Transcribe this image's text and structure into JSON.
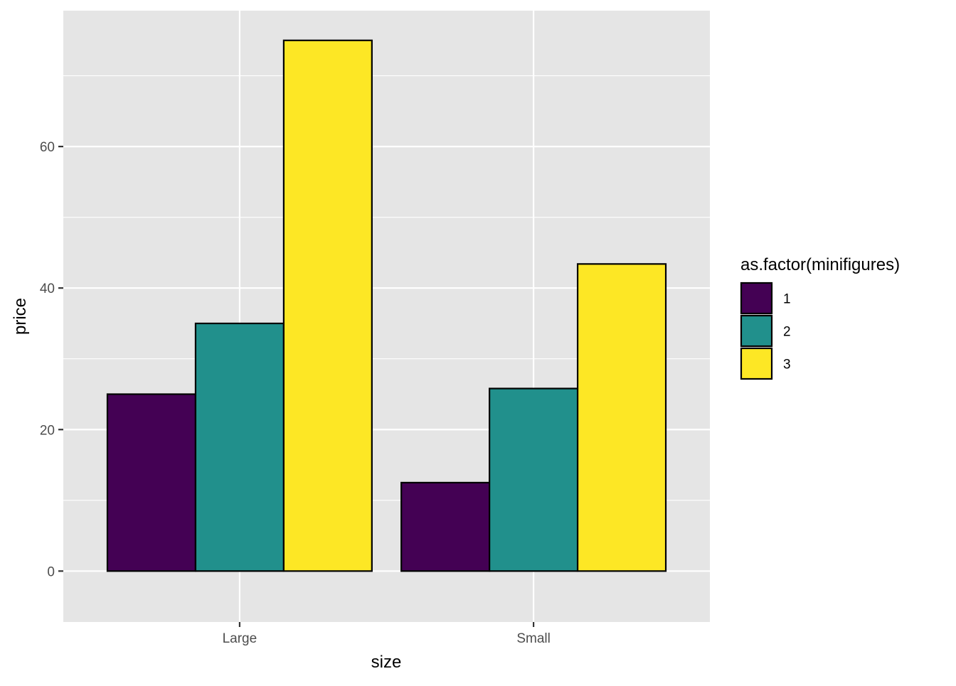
{
  "chart_data": {
    "type": "bar",
    "xlabel": "size",
    "ylabel": "price",
    "categories": [
      "Large",
      "Small"
    ],
    "ylim": [
      -7.2,
      79.2
    ],
    "yticks": [
      0,
      20,
      40,
      60
    ],
    "grid": true,
    "legend": {
      "title": "as.factor(minifigures)",
      "position": "right"
    },
    "series": [
      {
        "name": "1",
        "color": "#440154",
        "values": [
          25,
          12.5
        ]
      },
      {
        "name": "2",
        "color": "#21908C",
        "values": [
          35,
          25.8
        ]
      },
      {
        "name": "3",
        "color": "#FDE725",
        "values": [
          75,
          43.4
        ]
      }
    ],
    "panel_background": "#E5E5E5",
    "gridline_color": "#FFFFFF",
    "bar_outline_color": "#000000"
  }
}
